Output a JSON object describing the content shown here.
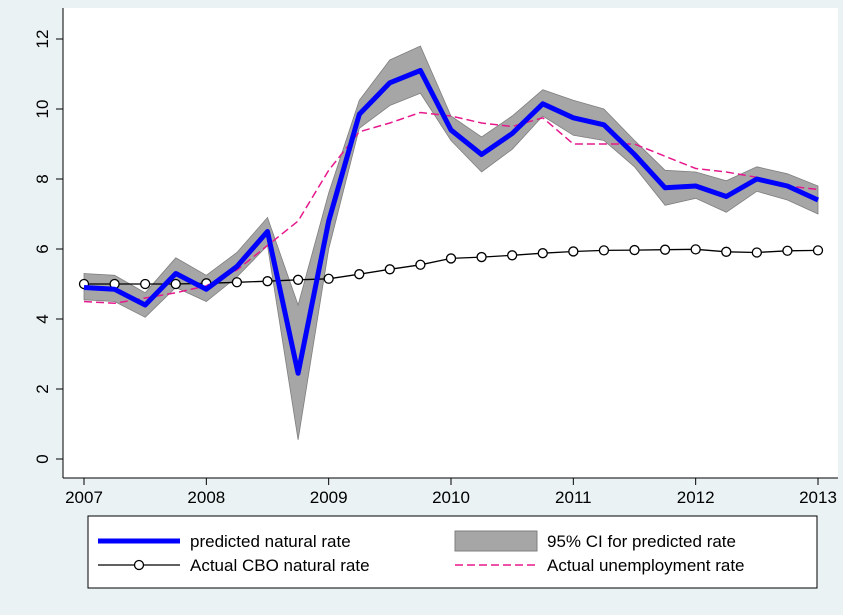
{
  "chart_data": {
    "type": "line",
    "x": [
      2007,
      2007.25,
      2007.5,
      2007.75,
      2008,
      2008.25,
      2008.5,
      2008.75,
      2009,
      2009.25,
      2009.5,
      2009.75,
      2010,
      2010.25,
      2010.5,
      2010.75,
      2011,
      2011.25,
      2011.5,
      2011.75,
      2012,
      2012.25,
      2012.5,
      2012.75,
      2013
    ],
    "xlim": [
      2007,
      2013
    ],
    "xticks": [
      2007,
      2008,
      2009,
      2010,
      2011,
      2012,
      2013
    ],
    "ylim": [
      0,
      12
    ],
    "yticks": [
      0,
      2,
      4,
      6,
      8,
      10,
      12
    ],
    "series": [
      {
        "name": "predicted natural rate",
        "color": "#0000ff",
        "style": "thick",
        "values": [
          4.9,
          4.85,
          4.4,
          5.3,
          4.85,
          5.5,
          6.5,
          2.45,
          6.8,
          9.85,
          10.75,
          11.1,
          9.4,
          8.7,
          9.3,
          10.15,
          9.75,
          9.55,
          8.7,
          7.75,
          7.8,
          7.5,
          8.0,
          7.8,
          7.4
        ]
      },
      {
        "name": "95% CI for predicted rate",
        "color": "#a6a6a6",
        "style": "band",
        "lower": [
          4.55,
          4.5,
          4.05,
          4.9,
          4.5,
          5.2,
          6.1,
          0.55,
          6.0,
          9.45,
          10.1,
          10.45,
          9.1,
          8.2,
          8.85,
          9.8,
          9.25,
          9.1,
          8.35,
          7.25,
          7.45,
          7.05,
          7.65,
          7.4,
          7.0
        ],
        "upper": [
          5.3,
          5.25,
          4.75,
          5.75,
          5.25,
          5.9,
          6.9,
          4.4,
          7.6,
          10.25,
          11.4,
          11.8,
          9.8,
          9.2,
          9.8,
          10.55,
          10.25,
          10.0,
          9.1,
          8.25,
          8.2,
          7.95,
          8.35,
          8.15,
          7.8
        ]
      },
      {
        "name": "Actual CBO natural rate",
        "color": "#000000",
        "style": "markers",
        "values": [
          5.0,
          5.0,
          5.0,
          5.0,
          5.02,
          5.05,
          5.08,
          5.12,
          5.15,
          5.28,
          5.42,
          5.55,
          5.73,
          5.77,
          5.82,
          5.88,
          5.93,
          5.96,
          5.97,
          5.98,
          5.99,
          5.92,
          5.9,
          5.95,
          5.96
        ]
      },
      {
        "name": "Actual unemployment rate",
        "color": "#e6198c",
        "style": "dashed",
        "values": [
          4.5,
          4.45,
          4.6,
          4.75,
          4.95,
          5.4,
          6.1,
          6.8,
          8.25,
          9.35,
          9.6,
          9.9,
          9.8,
          9.6,
          9.5,
          9.75,
          9.0,
          9.0,
          9.0,
          8.65,
          8.3,
          8.2,
          8.05,
          7.8,
          7.7
        ]
      }
    ]
  }
}
